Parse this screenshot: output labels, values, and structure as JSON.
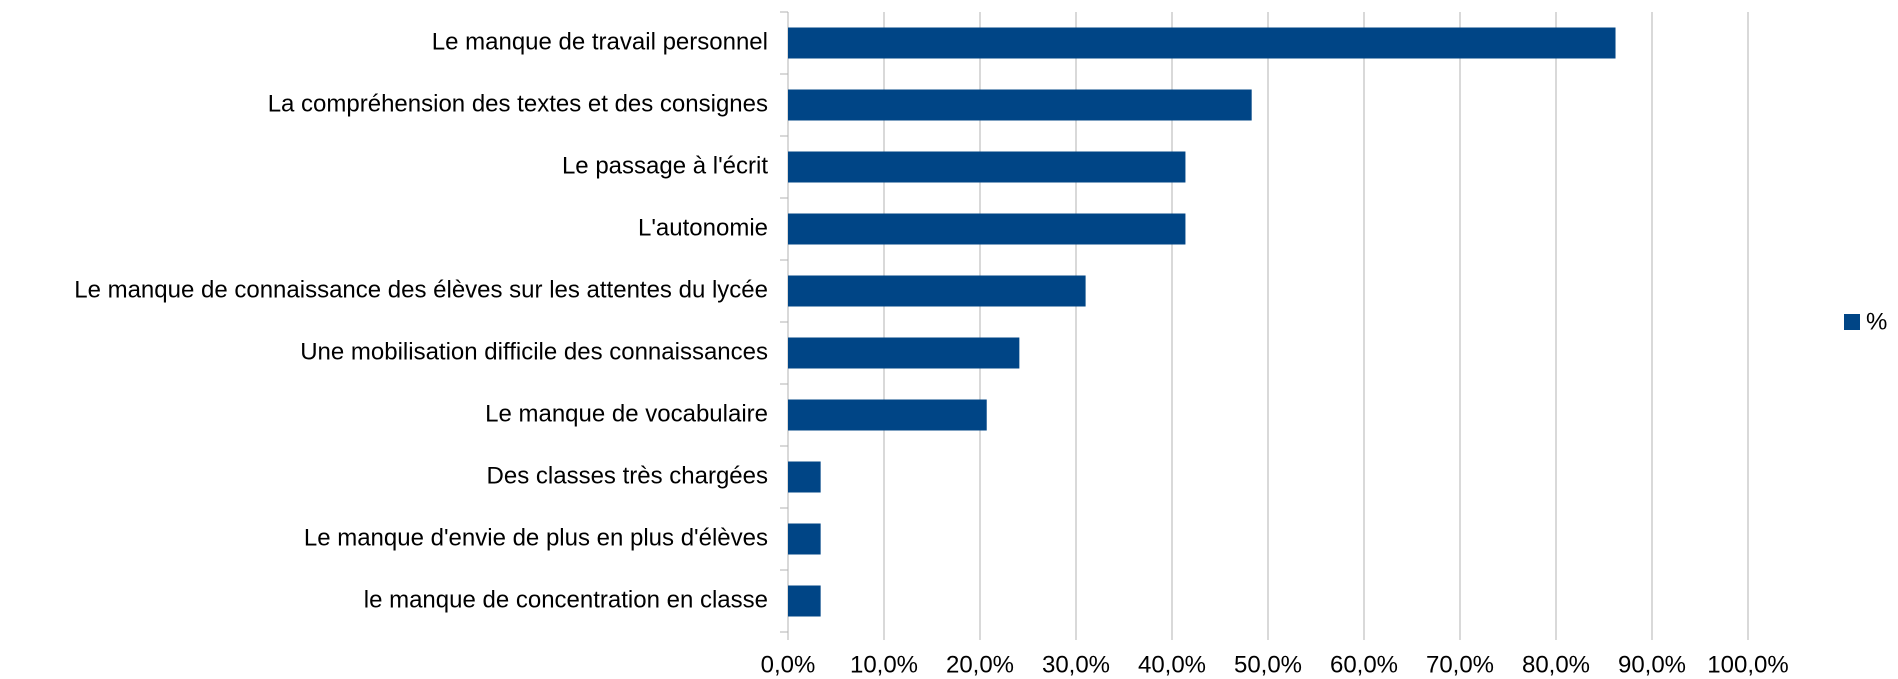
{
  "chart_data": {
    "type": "bar",
    "orientation": "horizontal",
    "categories": [
      "Le manque de travail personnel",
      "La compréhension des textes et des consignes",
      "Le passage à l'écrit",
      "L'autonomie",
      "Le manque de connaissance des élèves sur les attentes du lycée",
      "Une mobilisation difficile des connaissances",
      "Le manque de vocabulaire",
      "Des classes très chargées",
      "Le manque d'envie de plus en plus d'élèves",
      "le manque de concentration en classe"
    ],
    "series": [
      {
        "name": "%",
        "color": "#004586",
        "values": [
          86.2,
          48.3,
          41.4,
          41.4,
          31.0,
          24.1,
          20.7,
          3.4,
          3.4,
          3.4
        ]
      }
    ],
    "xlim": [
      0,
      100
    ],
    "xticks": [
      {
        "value": 0,
        "label": "0,0%"
      },
      {
        "value": 10,
        "label": "10,0%"
      },
      {
        "value": 20,
        "label": "20,0%"
      },
      {
        "value": 30,
        "label": "30,0%"
      },
      {
        "value": 40,
        "label": "40,0%"
      },
      {
        "value": 50,
        "label": "50,0%"
      },
      {
        "value": 60,
        "label": "60,0%"
      },
      {
        "value": 70,
        "label": "70,0%"
      },
      {
        "value": 80,
        "label": "80,0%"
      },
      {
        "value": 90,
        "label": "90,0%"
      },
      {
        "value": 100,
        "label": "100,0%"
      }
    ],
    "grid": true,
    "legend": "right"
  }
}
